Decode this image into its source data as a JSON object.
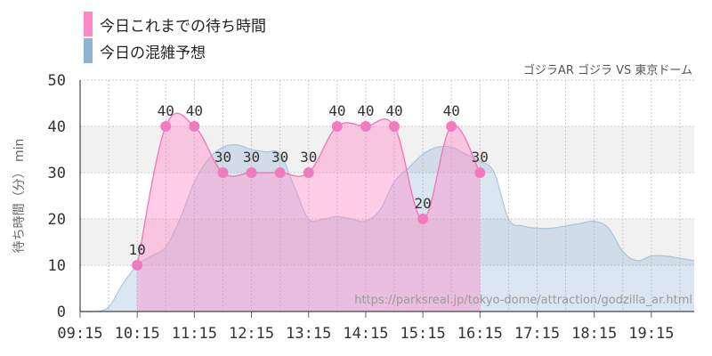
{
  "chart_data": {
    "type": "area",
    "legend": [
      {
        "name": "今日これまでの待ち時間",
        "color": "#ff88c8"
      },
      {
        "name": "今日の混雑予想",
        "color": "#8fb3d3"
      }
    ],
    "subtitle": "ゴジラAR ゴジラ VS 東京ドーム",
    "source_url": "https://parksreal.jp/tokyo-dome/attraction/godzilla_ar.html",
    "ylabel": "待ち時間（分） min",
    "ylim": [
      0,
      50
    ],
    "yticks": [
      0,
      10,
      20,
      30,
      40,
      50
    ],
    "xlim": [
      "09:15",
      "20:00"
    ],
    "xticks": [
      "09:15",
      "10:15",
      "11:15",
      "12:15",
      "13:15",
      "14:15",
      "15:15",
      "16:15",
      "17:15",
      "18:15",
      "19:15"
    ],
    "series": [
      {
        "name": "今日これまでの待ち時間",
        "color": "#ff88c8",
        "x": [
          "10:15",
          "10:45",
          "11:15",
          "11:45",
          "12:15",
          "12:45",
          "13:15",
          "13:45",
          "14:15",
          "14:45",
          "15:15",
          "15:45",
          "16:15"
        ],
        "values": [
          10,
          40,
          40,
          30,
          30,
          30,
          30,
          40,
          40,
          40,
          20,
          40,
          30
        ],
        "labels": [
          "10",
          "40",
          "40",
          "30",
          "30",
          "30",
          "30",
          "40",
          "40",
          "40",
          "20",
          "40",
          "30"
        ]
      },
      {
        "name": "今日の混雑予想",
        "color": "#8fb3d3",
        "x": [
          "09:15",
          "09:30",
          "09:45",
          "10:00",
          "10:15",
          "10:30",
          "10:45",
          "11:00",
          "11:15",
          "11:30",
          "11:45",
          "12:00",
          "12:15",
          "12:30",
          "12:45",
          "13:00",
          "13:15",
          "13:30",
          "13:45",
          "14:00",
          "14:15",
          "14:30",
          "14:45",
          "15:00",
          "15:15",
          "15:30",
          "15:45",
          "16:00",
          "16:15",
          "16:30",
          "16:45",
          "17:00",
          "17:15",
          "17:30",
          "17:45",
          "18:00",
          "18:15",
          "18:30",
          "18:45",
          "19:00",
          "19:15",
          "19:30",
          "19:45",
          "20:00"
        ],
        "values": [
          0,
          0,
          1,
          6,
          10,
          12,
          14,
          20,
          28,
          33,
          35.5,
          36,
          35,
          34.5,
          34,
          27,
          20,
          20,
          20.5,
          20,
          19.5,
          22,
          28,
          31,
          34,
          35.5,
          35.5,
          34,
          32.5,
          30,
          20,
          18.5,
          18,
          18,
          18.5,
          19,
          19.5,
          18,
          13,
          11,
          12,
          12,
          11.5,
          11
        ]
      }
    ],
    "grid": true
  }
}
